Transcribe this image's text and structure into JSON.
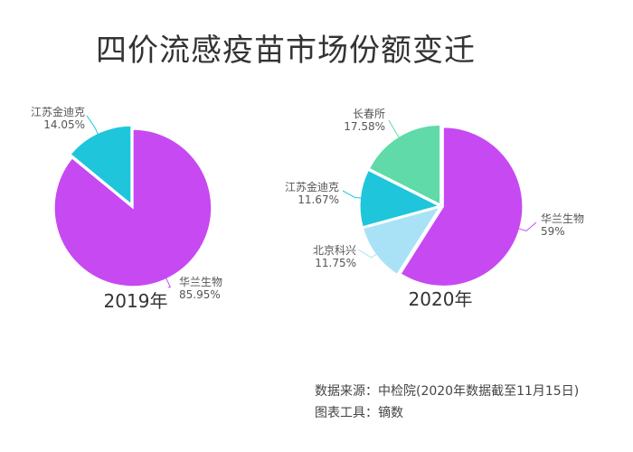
{
  "title": "四价流感疫苗市场份额变迁",
  "source_line": "数据来源：中检院(2020年数据截至11月15日)",
  "tool_line": "图表工具：镝数",
  "chart_data": [
    {
      "type": "pie",
      "caption": "2019年",
      "slices": [
        {
          "name": "华兰生物",
          "value": 85.95,
          "label": "85.95%",
          "color": "#c749f2"
        },
        {
          "name": "江苏金迪克",
          "value": 14.05,
          "label": "14.05%",
          "color": "#1fc6db"
        }
      ]
    },
    {
      "type": "pie",
      "caption": "2020年",
      "slices": [
        {
          "name": "华兰生物",
          "value": 59,
          "label": "59%",
          "color": "#c749f2"
        },
        {
          "name": "北京科兴",
          "value": 11.75,
          "label": "11.75%",
          "color": "#a9e2f7"
        },
        {
          "name": "江苏金迪克",
          "value": 11.67,
          "label": "11.67%",
          "color": "#1fc6db"
        },
        {
          "name": "长春所",
          "value": 17.58,
          "label": "17.58%",
          "color": "#5fdaa8"
        }
      ]
    }
  ]
}
